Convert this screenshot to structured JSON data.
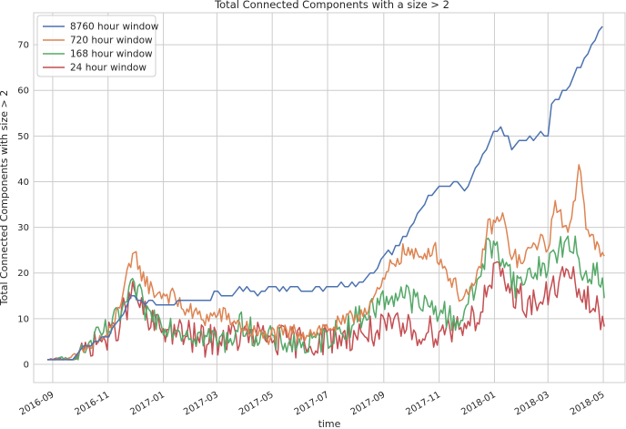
{
  "chart_data": {
    "type": "line",
    "title": "Total Connected Components with a size > 2",
    "xlabel": "time",
    "ylabel": "Total Connected Components with size > 2",
    "x_range": [
      "2016-08-11",
      "2018-05-25"
    ],
    "y_range": [
      -4,
      77
    ],
    "y_ticks": [
      0,
      10,
      20,
      30,
      40,
      50,
      60,
      70
    ],
    "x_ticks": [
      {
        "date": "2016-09-01",
        "label": "2016-09"
      },
      {
        "date": "2016-11-01",
        "label": "2016-11"
      },
      {
        "date": "2017-01-01",
        "label": "2017-01"
      },
      {
        "date": "2017-03-01",
        "label": "2017-03"
      },
      {
        "date": "2017-05-01",
        "label": "2017-05"
      },
      {
        "date": "2017-07-01",
        "label": "2017-07"
      },
      {
        "date": "2017-09-01",
        "label": "2017-09"
      },
      {
        "date": "2017-11-01",
        "label": "2017-11"
      },
      {
        "date": "2018-01-01",
        "label": "2018-01"
      },
      {
        "date": "2018-03-01",
        "label": "2018-03"
      },
      {
        "date": "2018-05-01",
        "label": "2018-05"
      }
    ],
    "grid": true,
    "legend_position": "top-left",
    "series": [
      {
        "name": "8760 hour window",
        "color": "#4c72b0",
        "points": [
          [
            "2016-08-26",
            1
          ],
          [
            "2016-09-20",
            1
          ],
          [
            "2016-10-01",
            3
          ],
          [
            "2016-10-20",
            5
          ],
          [
            "2016-11-05",
            7
          ],
          [
            "2016-11-20",
            12
          ],
          [
            "2016-11-25",
            15
          ],
          [
            "2016-12-10",
            14
          ],
          [
            "2016-12-25",
            13
          ],
          [
            "2017-01-10",
            13
          ],
          [
            "2017-01-20",
            14
          ],
          [
            "2017-02-15",
            14
          ],
          [
            "2017-02-20",
            15
          ],
          [
            "2017-03-15",
            15
          ],
          [
            "2017-03-20",
            16
          ],
          [
            "2017-04-20",
            16
          ],
          [
            "2017-04-28",
            17
          ],
          [
            "2017-05-30",
            17
          ],
          [
            "2017-06-05",
            16
          ],
          [
            "2017-06-20",
            17
          ],
          [
            "2017-07-25",
            17
          ],
          [
            "2017-08-10",
            18
          ],
          [
            "2017-08-20",
            20
          ],
          [
            "2017-09-01",
            24
          ],
          [
            "2017-09-10",
            25
          ],
          [
            "2017-09-25",
            28
          ],
          [
            "2017-10-05",
            32
          ],
          [
            "2017-10-20",
            36
          ],
          [
            "2017-11-01",
            39
          ],
          [
            "2017-11-20",
            40
          ],
          [
            "2017-12-01",
            38
          ],
          [
            "2017-12-10",
            42
          ],
          [
            "2017-12-20",
            46
          ],
          [
            "2018-01-01",
            51
          ],
          [
            "2018-01-10",
            51
          ],
          [
            "2018-01-20",
            48
          ],
          [
            "2018-02-01",
            49
          ],
          [
            "2018-02-15",
            50
          ],
          [
            "2018-03-01",
            50
          ],
          [
            "2018-03-05",
            57
          ],
          [
            "2018-03-20",
            60
          ],
          [
            "2018-04-01",
            64
          ],
          [
            "2018-04-10",
            67
          ],
          [
            "2018-04-25",
            72
          ],
          [
            "2018-04-29",
            74
          ],
          [
            "2018-05-03",
            73
          ]
        ],
        "noise": 0.6
      },
      {
        "name": "720 hour window",
        "color": "#dd8452",
        "points": [
          [
            "2016-08-26",
            1
          ],
          [
            "2016-09-20",
            1
          ],
          [
            "2016-10-05",
            3
          ],
          [
            "2016-10-20",
            5
          ],
          [
            "2016-11-05",
            7
          ],
          [
            "2016-11-20",
            18
          ],
          [
            "2016-12-01",
            24
          ],
          [
            "2016-12-10",
            19
          ],
          [
            "2016-12-20",
            16
          ],
          [
            "2017-01-10",
            15
          ],
          [
            "2017-01-25",
            12
          ],
          [
            "2017-02-15",
            10
          ],
          [
            "2017-03-05",
            11
          ],
          [
            "2017-04-01",
            8
          ],
          [
            "2017-04-20",
            6
          ],
          [
            "2017-05-20",
            7
          ],
          [
            "2017-06-10",
            7
          ],
          [
            "2017-07-01",
            8
          ],
          [
            "2017-07-20",
            9
          ],
          [
            "2017-08-10",
            12
          ],
          [
            "2017-08-25",
            15
          ],
          [
            "2017-09-10",
            22
          ],
          [
            "2017-09-25",
            25
          ],
          [
            "2017-10-10",
            23
          ],
          [
            "2017-10-25",
            26
          ],
          [
            "2017-11-10",
            20
          ],
          [
            "2017-11-25",
            15
          ],
          [
            "2017-12-10",
            16
          ],
          [
            "2017-12-25",
            30
          ],
          [
            "2018-01-10",
            32
          ],
          [
            "2018-01-20",
            24
          ],
          [
            "2018-02-01",
            22
          ],
          [
            "2018-02-15",
            27
          ],
          [
            "2018-03-01",
            26
          ],
          [
            "2018-03-10",
            36
          ],
          [
            "2018-03-20",
            28
          ],
          [
            "2018-04-01",
            37
          ],
          [
            "2018-04-05",
            46
          ],
          [
            "2018-04-12",
            31
          ],
          [
            "2018-04-20",
            27
          ],
          [
            "2018-04-28",
            24
          ],
          [
            "2018-05-03",
            22
          ]
        ],
        "noise": 2.0
      },
      {
        "name": "168 hour window",
        "color": "#55a868",
        "points": [
          [
            "2016-08-26",
            1
          ],
          [
            "2016-09-20",
            1
          ],
          [
            "2016-10-05",
            3
          ],
          [
            "2016-10-20",
            6
          ],
          [
            "2016-11-05",
            8
          ],
          [
            "2016-11-20",
            13
          ],
          [
            "2016-11-30",
            17
          ],
          [
            "2016-12-15",
            11
          ],
          [
            "2017-01-15",
            8
          ],
          [
            "2017-02-15",
            6
          ],
          [
            "2017-03-10",
            5
          ],
          [
            "2017-03-30",
            9
          ],
          [
            "2017-04-15",
            6
          ],
          [
            "2017-05-15",
            5
          ],
          [
            "2017-06-10",
            4
          ],
          [
            "2017-07-01",
            6
          ],
          [
            "2017-07-20",
            8
          ],
          [
            "2017-08-10",
            11
          ],
          [
            "2017-09-01",
            14
          ],
          [
            "2017-09-20",
            16
          ],
          [
            "2017-10-10",
            13
          ],
          [
            "2017-11-01",
            12
          ],
          [
            "2017-11-20",
            9
          ],
          [
            "2017-12-10",
            16
          ],
          [
            "2017-12-25",
            26
          ],
          [
            "2018-01-10",
            24
          ],
          [
            "2018-01-25",
            17
          ],
          [
            "2018-02-10",
            20
          ],
          [
            "2018-03-01",
            22
          ],
          [
            "2018-03-15",
            26
          ],
          [
            "2018-04-01",
            25
          ],
          [
            "2018-04-10",
            19
          ],
          [
            "2018-04-20",
            21
          ],
          [
            "2018-05-03",
            17
          ]
        ],
        "noise": 3.0
      },
      {
        "name": "24 hour window",
        "color": "#c44e52",
        "points": [
          [
            "2016-08-26",
            1
          ],
          [
            "2016-09-20",
            1
          ],
          [
            "2016-10-05",
            3
          ],
          [
            "2016-10-20",
            5
          ],
          [
            "2016-11-05",
            6
          ],
          [
            "2016-11-20",
            12
          ],
          [
            "2016-11-30",
            16
          ],
          [
            "2016-12-15",
            9
          ],
          [
            "2017-01-15",
            7
          ],
          [
            "2017-02-15",
            5
          ],
          [
            "2017-03-15",
            6
          ],
          [
            "2017-04-15",
            6
          ],
          [
            "2017-05-15",
            5
          ],
          [
            "2017-06-15",
            5
          ],
          [
            "2017-07-15",
            6
          ],
          [
            "2017-08-15",
            7
          ],
          [
            "2017-09-15",
            8
          ],
          [
            "2017-10-15",
            7
          ],
          [
            "2017-11-15",
            8
          ],
          [
            "2017-12-15",
            11
          ],
          [
            "2018-01-01",
            20
          ],
          [
            "2018-01-20",
            16
          ],
          [
            "2018-02-10",
            13
          ],
          [
            "2018-03-01",
            15
          ],
          [
            "2018-03-20",
            20
          ],
          [
            "2018-04-05",
            16
          ],
          [
            "2018-04-20",
            12
          ],
          [
            "2018-05-03",
            10
          ]
        ],
        "noise": 3.6
      }
    ]
  }
}
